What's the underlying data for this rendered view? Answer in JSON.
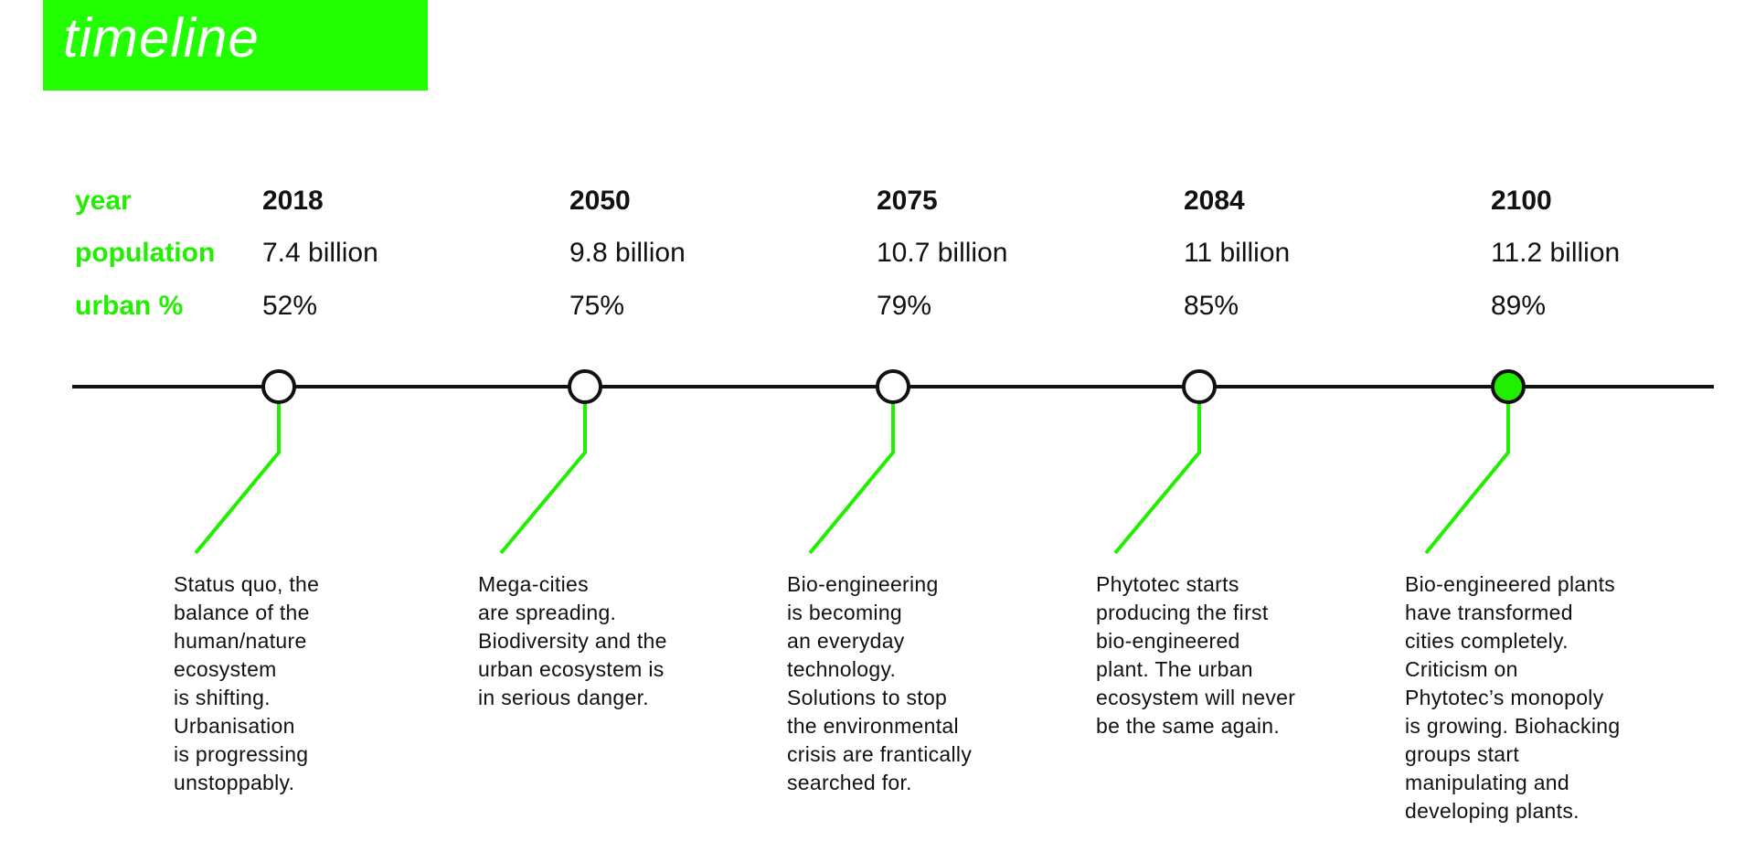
{
  "header": {
    "title": "timeline"
  },
  "row_labels": {
    "year": "year",
    "population": "population",
    "urban": "urban %"
  },
  "colors": {
    "accent": "#22ff00",
    "line": "#111111",
    "text": "#111111"
  },
  "milestones": [
    {
      "year": "2018",
      "population": "7.4 billion",
      "urban": "52%",
      "highlighted": false,
      "description": [
        "Status quo, the",
        "balance of the",
        "human/nature",
        "ecosystem",
        "is shifting.",
        "Urbanisation",
        "is progressing",
        "unstoppably."
      ]
    },
    {
      "year": "2050",
      "population": "9.8 billion",
      "urban": "75%",
      "highlighted": false,
      "description": [
        "Mega-cities",
        "are spreading.",
        "Biodiversity and the",
        "urban ecosystem is",
        "in serious danger."
      ]
    },
    {
      "year": "2075",
      "population": "10.7 billion",
      "urban": "79%",
      "highlighted": false,
      "description": [
        "Bio-engineering",
        "is becoming",
        "an everyday",
        "technology.",
        "Solutions to stop",
        "the environmental",
        "crisis are frantically",
        "searched for."
      ]
    },
    {
      "year": "2084",
      "population": "11 billion",
      "urban": "85%",
      "highlighted": false,
      "description": [
        "Phytotec starts",
        "producing the first",
        "bio-engineered",
        "plant. The urban",
        "ecosystem will never",
        "be the same again."
      ]
    },
    {
      "year": "2100",
      "population": "11.2 billion",
      "urban": "89%",
      "highlighted": true,
      "description": [
        "Bio-engineered plants",
        "have transformed",
        "cities completely.",
        "Criticism on",
        "Phytotec’s monopoly",
        "is growing. Biohacking",
        "groups start",
        "manipulating and",
        "developing plants."
      ]
    }
  ]
}
